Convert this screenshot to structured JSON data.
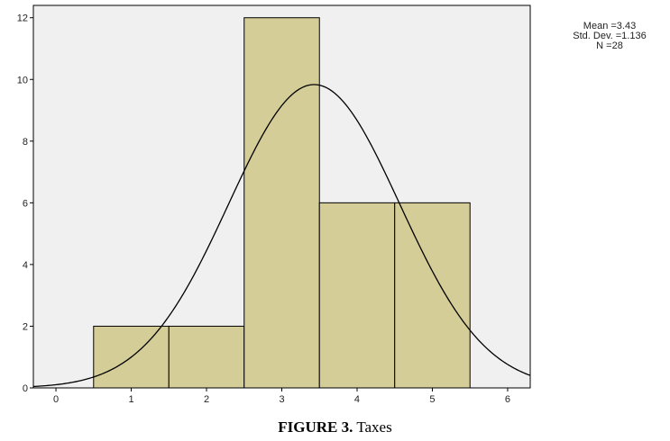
{
  "chart_data": {
    "type": "bar",
    "subtype": "histogram",
    "bins": [
      {
        "start": 0.5,
        "end": 1.5,
        "count": 2
      },
      {
        "start": 1.5,
        "end": 2.5,
        "count": 2
      },
      {
        "start": 2.5,
        "end": 3.5,
        "count": 12
      },
      {
        "start": 3.5,
        "end": 4.5,
        "count": 6
      },
      {
        "start": 4.5,
        "end": 5.5,
        "count": 6
      }
    ],
    "xlim": [
      -0.3,
      6.3
    ],
    "ylim": [
      0,
      12.4
    ],
    "x_ticks": [
      "0",
      "1",
      "2",
      "3",
      "4",
      "5",
      "6"
    ],
    "y_ticks": [
      "0",
      "2",
      "4",
      "6",
      "8",
      "10",
      "12"
    ],
    "normal_curve": {
      "mean": 3.43,
      "sd": 1.136,
      "n": 28,
      "bin_width": 1
    },
    "grid": false,
    "colors": {
      "bar_fill": "#d4cd98",
      "plot_bg": "#f0f0f0",
      "line": "#000000"
    }
  },
  "stats": {
    "mean": "Mean =3.43",
    "std_dev": "Std. Dev. =1.136",
    "n": "N =28"
  },
  "caption": {
    "label": "FIGURE 3.",
    "text": " Taxes"
  }
}
